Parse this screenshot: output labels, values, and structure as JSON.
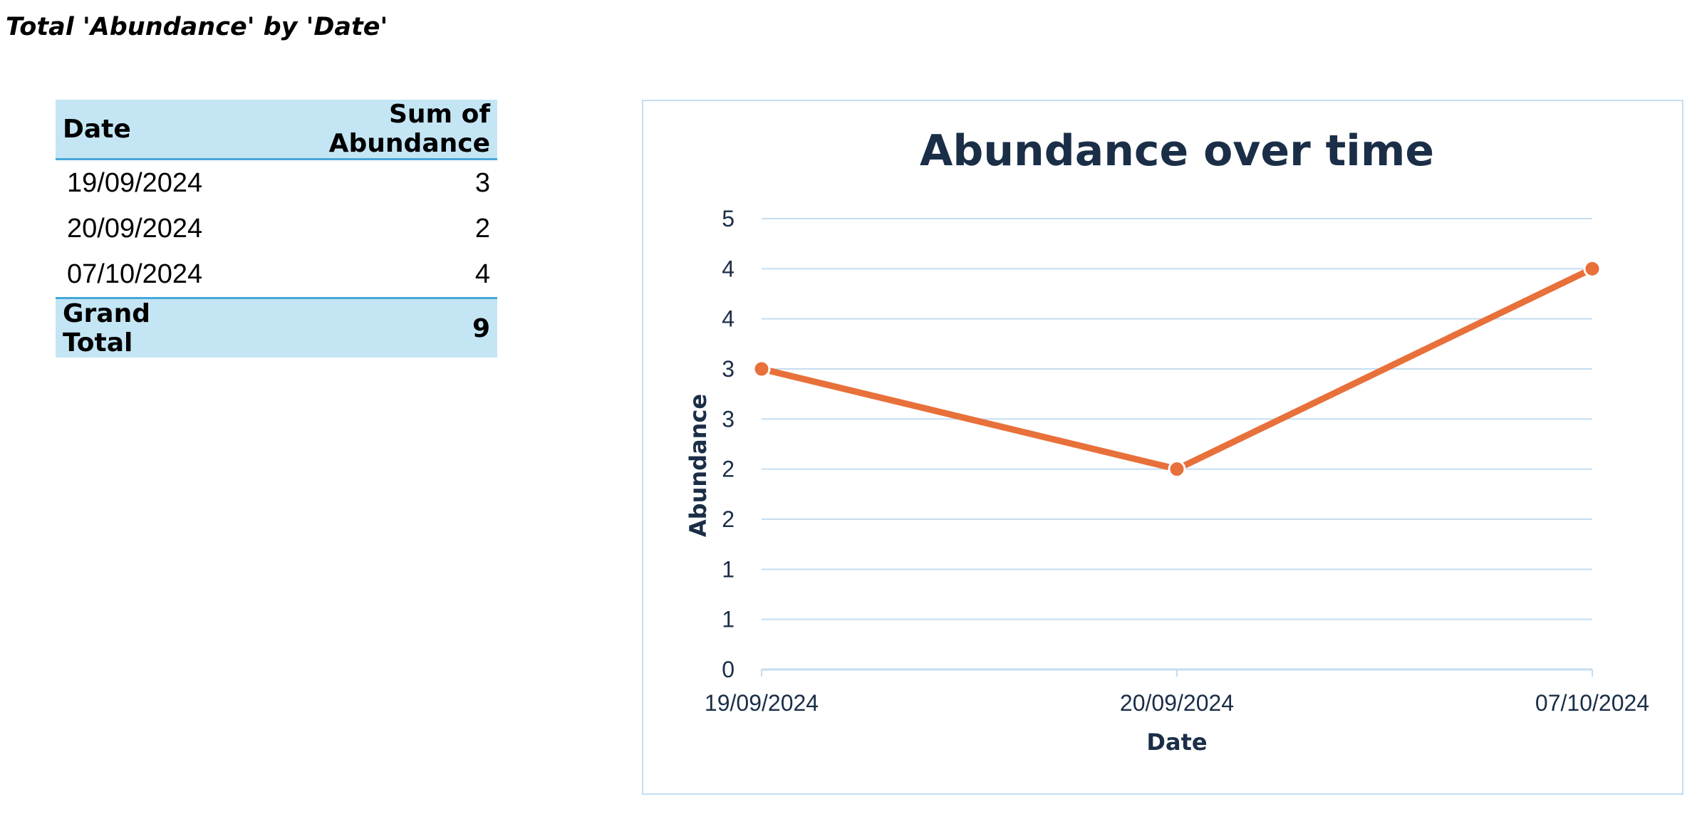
{
  "page": {
    "title": "Total 'Abundance' by 'Date'"
  },
  "pivot": {
    "headers": {
      "date": "Date",
      "sum": "Sum of Abundance"
    },
    "rows": [
      {
        "date": "19/09/2024",
        "value": "3"
      },
      {
        "date": "20/09/2024",
        "value": "2"
      },
      {
        "date": "07/10/2024",
        "value": "4"
      }
    ],
    "total": {
      "label": "Grand Total",
      "value": "9"
    }
  },
  "chart_data": {
    "type": "line",
    "title": "Abundance over time",
    "xlabel": "Date",
    "ylabel": "Abundance",
    "categories": [
      "19/09/2024",
      "20/09/2024",
      "07/10/2024"
    ],
    "series": [
      {
        "values": [
          3,
          2,
          4
        ]
      }
    ],
    "ylim": [
      0,
      4.5
    ],
    "yticks": [
      0,
      0.5,
      1,
      1.5,
      2,
      2.5,
      3,
      3.5,
      4,
      4.5
    ],
    "ytick_labels": [
      "0",
      "1",
      "1",
      "2",
      "2",
      "3",
      "3",
      "4",
      "4",
      "5"
    ],
    "grid": true,
    "legend": "none",
    "colors": {
      "line": "#e8703a",
      "grid": "#c5ddf0",
      "text": "#1b2e47",
      "title": "#1b2e47",
      "header_fill": "#c4e5f4",
      "header_rule": "#46a7d9"
    }
  }
}
